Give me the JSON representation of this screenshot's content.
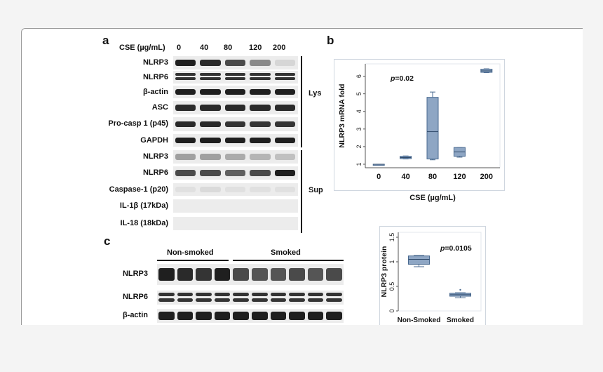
{
  "panel_a": {
    "letter": "a",
    "cse_header": "CSE (µg/mL)",
    "concentrations": [
      "0",
      "40",
      "80",
      "120",
      "200"
    ],
    "rows": [
      {
        "label": "NLRP3",
        "intensity": [
          0.95,
          0.9,
          0.75,
          0.45,
          0.1
        ]
      },
      {
        "label": "NLRP6",
        "intensity": [
          0.85,
          0.85,
          0.85,
          0.85,
          0.85
        ],
        "double": true
      },
      {
        "label": "β-actin",
        "intensity": [
          0.95,
          0.95,
          0.95,
          0.95,
          0.95
        ]
      },
      {
        "label": "ASC",
        "intensity": [
          0.9,
          0.9,
          0.9,
          0.9,
          0.9
        ]
      },
      {
        "label": "Pro-casp 1 (p45)",
        "intensity": [
          0.9,
          0.9,
          0.85,
          0.85,
          0.85
        ]
      },
      {
        "label": "GAPDH",
        "intensity": [
          0.95,
          0.95,
          0.95,
          0.95,
          0.95
        ]
      },
      {
        "label": "NLRP3",
        "intensity": [
          0.35,
          0.35,
          0.3,
          0.25,
          0.2
        ]
      },
      {
        "label": "NLRP6",
        "intensity": [
          0.75,
          0.75,
          0.65,
          0.75,
          0.95
        ]
      },
      {
        "label": "Caspase-1 (p20)",
        "intensity": [
          0.05,
          0.08,
          0.05,
          0.05,
          0.05
        ]
      },
      {
        "label": "IL-1β (17kDa)",
        "intensity": [
          0.0,
          0.0,
          0.0,
          0.0,
          0.0
        ]
      },
      {
        "label": "IL-18 (18kDa)",
        "intensity": [
          0.0,
          0.0,
          0.0,
          0.0,
          0.0
        ]
      }
    ],
    "group_lys": "Lys",
    "group_sup": "Sup"
  },
  "panel_b": {
    "letter": "b",
    "chart_data": {
      "type": "box",
      "categories": [
        "0",
        "40",
        "80",
        "120",
        "200"
      ],
      "boxes": [
        {
          "min": 1.0,
          "q1": 1.0,
          "median": 1.0,
          "q3": 1.0,
          "max": 1.0
        },
        {
          "min": 1.3,
          "q1": 1.32,
          "median": 1.38,
          "q3": 1.45,
          "max": 1.47
        },
        {
          "min": 1.25,
          "q1": 1.3,
          "median": 2.85,
          "q3": 4.8,
          "max": 5.1
        },
        {
          "min": 1.4,
          "q1": 1.45,
          "median": 1.7,
          "q3": 1.95,
          "max": 1.95
        },
        {
          "min": 6.2,
          "q1": 6.22,
          "median": 6.3,
          "q3": 6.4,
          "max": 6.42
        }
      ],
      "yticks": [
        "1",
        "2",
        "3",
        "4",
        "5",
        "6"
      ],
      "ylim": [
        0.8,
        6.7
      ],
      "ylabel": "NLRP3 mRNA fold",
      "xlabel": "CSE (µg/mL)",
      "annotation_p": "p",
      "annotation_val": "=0.02",
      "box_color": "#8ea6c4",
      "edge_color": "#4a6a90"
    }
  },
  "panel_c": {
    "letter": "c",
    "group_non_smoked": "Non-smoked",
    "group_smoked": "Smoked",
    "rows": [
      {
        "label": "NLRP3",
        "intensity": [
          0.95,
          0.9,
          0.85,
          0.95,
          0.75,
          0.7,
          0.7,
          0.75,
          0.7,
          0.75
        ]
      },
      {
        "label": "NLRP6",
        "intensity": [
          0.85,
          0.85,
          0.85,
          0.85,
          0.85,
          0.85,
          0.85,
          0.85,
          0.85,
          0.85
        ]
      },
      {
        "label": "β-actin",
        "intensity": [
          0.95,
          0.95,
          0.95,
          0.95,
          0.95,
          0.95,
          0.95,
          0.95,
          0.95,
          0.95
        ]
      }
    ]
  },
  "panel_c_chart": {
    "chart_data": {
      "type": "box",
      "categories": [
        "Non-Smoked",
        "Smoked"
      ],
      "boxes": [
        {
          "min": 0.9,
          "q1": 0.95,
          "median": 1.05,
          "q3": 1.12,
          "max": 1.13
        },
        {
          "min": 0.27,
          "q1": 0.3,
          "median": 0.33,
          "q3": 0.36,
          "max": 0.37,
          "outliers": [
            0.43
          ]
        }
      ],
      "yticks": [
        "0",
        "0.5",
        "1",
        "1.5"
      ],
      "ylim": [
        0,
        1.6
      ],
      "ylabel": "NLRP3 protein",
      "annotation_p": "p",
      "annotation_val": "=0.0105",
      "box_color": "#8ea6c4",
      "edge_color": "#4a6a90"
    }
  }
}
